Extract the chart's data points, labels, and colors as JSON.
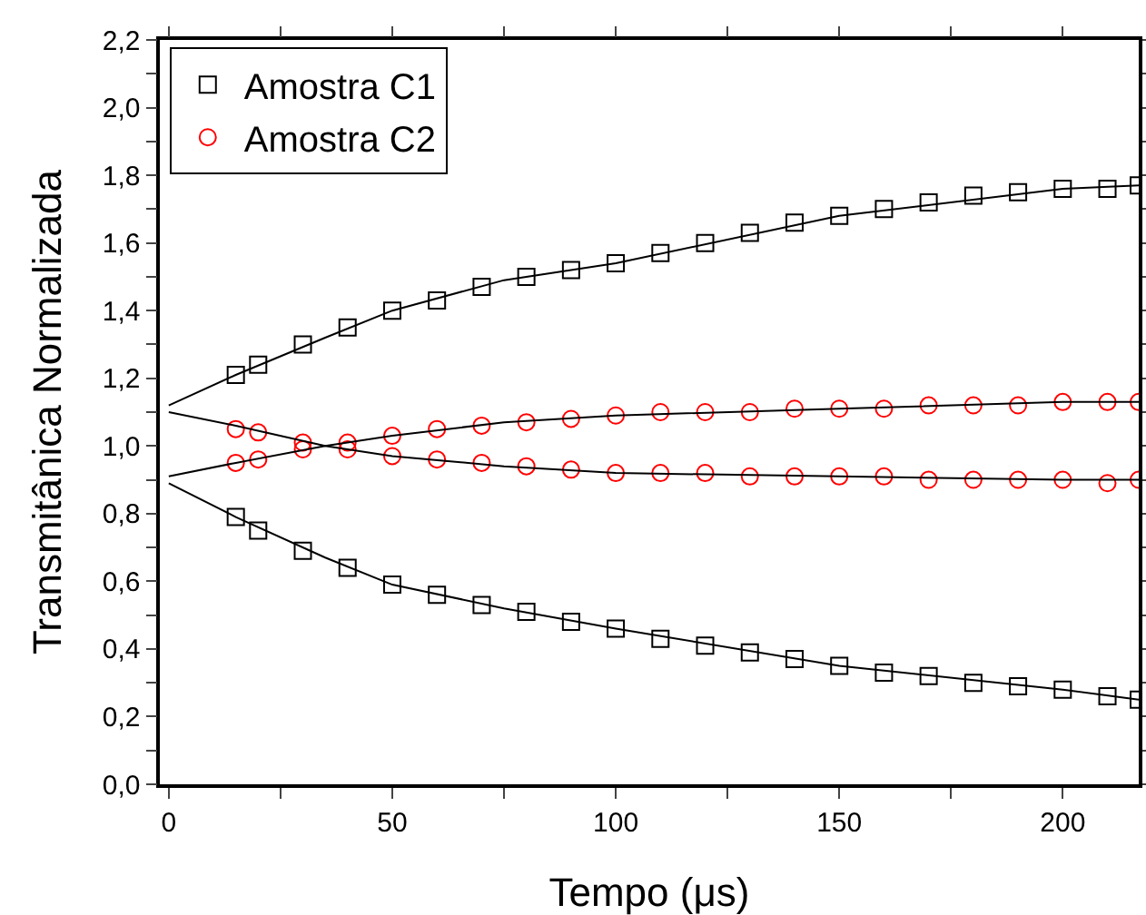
{
  "chart_data": {
    "type": "scatter",
    "xlabel": "Tempo (μs)",
    "ylabel": "Transmitânica Normalizada",
    "xlim": [
      -2,
      217
    ],
    "ylim": [
      0,
      2.2
    ],
    "xticks": [
      0,
      {
        "value": 25,
        "label": null
      },
      50,
      {
        "value": 75,
        "label": null
      },
      100,
      {
        "value": 125,
        "label": null
      },
      150,
      {
        "value": 175,
        "label": null
      },
      200
    ],
    "yticks": [
      {
        "value": 0,
        "label": "0,0"
      },
      {
        "value": 0.1,
        "label": null
      },
      {
        "value": 0.2,
        "label": "0,2"
      },
      {
        "value": 0.3,
        "label": null
      },
      {
        "value": 0.4,
        "label": "0,4"
      },
      {
        "value": 0.5,
        "label": null
      },
      {
        "value": 0.6,
        "label": "0,6"
      },
      {
        "value": 0.7,
        "label": null
      },
      {
        "value": 0.8,
        "label": "0,8"
      },
      {
        "value": 0.9,
        "label": null
      },
      {
        "value": 1.0,
        "label": "1,0"
      },
      {
        "value": 1.1,
        "label": null
      },
      {
        "value": 1.2,
        "label": "1,2"
      },
      {
        "value": 1.3,
        "label": null
      },
      {
        "value": 1.4,
        "label": "1,4"
      },
      {
        "value": 1.5,
        "label": null
      },
      {
        "value": 1.6,
        "label": "1,6"
      },
      {
        "value": 1.7,
        "label": null
      },
      {
        "value": 1.8,
        "label": "1,8"
      },
      {
        "value": 1.9,
        "label": null
      },
      {
        "value": 2.0,
        "label": "2,0"
      },
      {
        "value": 2.1,
        "label": null
      },
      {
        "value": 2.2,
        "label": "2,2"
      }
    ],
    "grid": false,
    "legend": "top left",
    "series": [
      {
        "name": "Amostra C1",
        "color": "#000000",
        "marker": "square",
        "x": [
          15,
          20,
          30,
          40,
          50,
          60,
          70,
          80,
          90,
          100,
          110,
          120,
          130,
          140,
          150,
          160,
          170,
          180,
          190,
          200,
          210,
          217
        ],
        "values": [
          1.21,
          1.24,
          1.3,
          1.35,
          1.4,
          1.43,
          1.47,
          1.5,
          1.52,
          1.54,
          1.57,
          1.6,
          1.63,
          1.66,
          1.68,
          1.7,
          1.72,
          1.74,
          1.75,
          1.76,
          1.76,
          1.77
        ]
      },
      {
        "name": "Amostra C2",
        "color": "#ff0000",
        "marker": "circle",
        "x": [
          15,
          20,
          30,
          40,
          50,
          60,
          70,
          80,
          90,
          100,
          110,
          120,
          130,
          140,
          150,
          160,
          170,
          180,
          190,
          200,
          210,
          217
        ],
        "values": [
          1.05,
          1.04,
          1.01,
          0.99,
          0.97,
          0.96,
          0.95,
          0.94,
          0.93,
          0.92,
          0.92,
          0.92,
          0.91,
          0.91,
          0.91,
          0.91,
          0.9,
          0.9,
          0.9,
          0.9,
          0.89,
          0.9
        ]
      },
      {
        "color": "#000000",
        "marker": "square",
        "x": [
          15,
          20,
          30,
          40,
          50,
          60,
          70,
          80,
          90,
          100,
          110,
          120,
          130,
          140,
          150,
          160,
          170,
          180,
          190,
          200,
          210,
          217
        ],
        "values": [
          0.79,
          0.75,
          0.69,
          0.64,
          0.59,
          0.56,
          0.53,
          0.51,
          0.48,
          0.46,
          0.43,
          0.41,
          0.39,
          0.37,
          0.35,
          0.33,
          0.32,
          0.3,
          0.29,
          0.28,
          0.26,
          0.25
        ]
      },
      {
        "color": "#ff0000",
        "marker": "circle",
        "x": [
          15,
          20,
          30,
          40,
          50,
          60,
          70,
          80,
          90,
          100,
          110,
          120,
          130,
          140,
          150,
          160,
          170,
          180,
          190,
          200,
          210,
          217
        ],
        "values": [
          0.95,
          0.96,
          0.99,
          1.01,
          1.03,
          1.05,
          1.06,
          1.07,
          1.08,
          1.09,
          1.1,
          1.1,
          1.1,
          1.11,
          1.11,
          1.11,
          1.12,
          1.12,
          1.12,
          1.13,
          1.13,
          1.13
        ]
      },
      {
        "type": "line",
        "color": "#000000",
        "marker": "none",
        "line_style": "solid",
        "x": [
          0,
          15,
          35,
          50,
          75,
          100,
          150,
          200,
          217
        ],
        "values": [
          1.12,
          1.21,
          1.32,
          1.4,
          1.49,
          1.54,
          1.68,
          1.76,
          1.77
        ]
      },
      {
        "type": "line",
        "color": "#000000",
        "marker": "none",
        "line_style": "solid",
        "x": [
          0,
          15,
          35,
          50,
          75,
          100,
          150,
          200,
          217
        ],
        "values": [
          0.89,
          0.79,
          0.67,
          0.59,
          0.52,
          0.46,
          0.35,
          0.28,
          0.25
        ]
      },
      {
        "type": "line",
        "color": "#000000",
        "marker": "none",
        "line_style": "solid",
        "x": [
          0,
          15,
          35,
          50,
          75,
          100,
          150,
          200,
          217
        ],
        "values": [
          1.1,
          1.06,
          1.0,
          0.97,
          0.94,
          0.92,
          0.91,
          0.9,
          0.9
        ]
      },
      {
        "type": "line",
        "color": "#000000",
        "marker": "none",
        "line_style": "solid",
        "x": [
          0,
          15,
          35,
          50,
          75,
          100,
          150,
          200,
          217
        ],
        "values": [
          0.91,
          0.95,
          1.0,
          1.03,
          1.07,
          1.09,
          1.11,
          1.13,
          1.13
        ]
      }
    ]
  }
}
